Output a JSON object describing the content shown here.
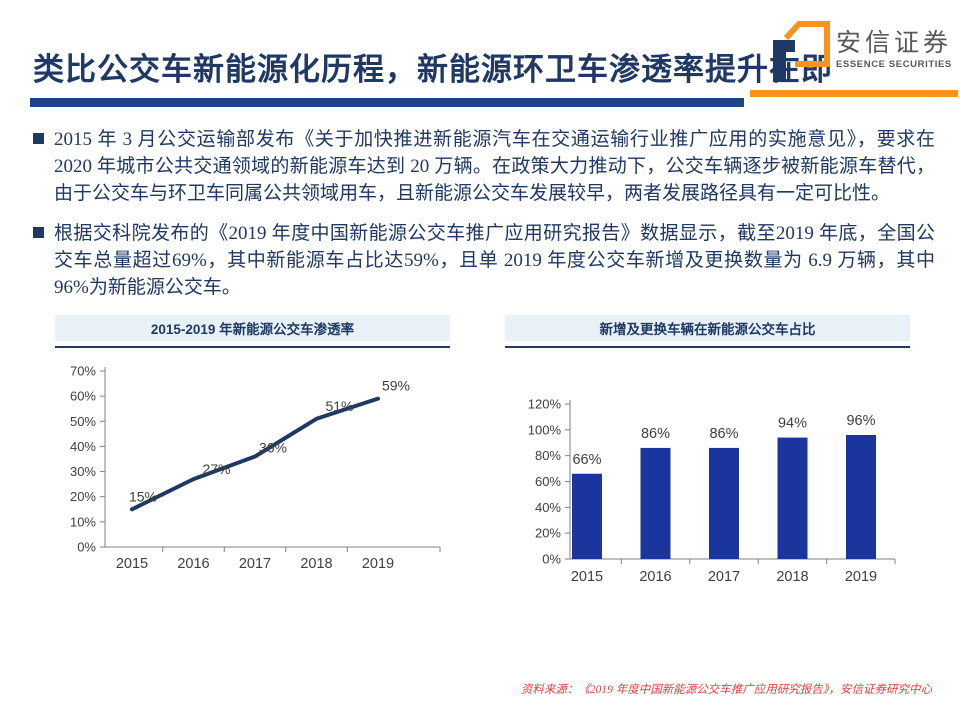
{
  "slide": {
    "title": "类比公交车新能源化历程，新能源环卫车渗透率提升在即",
    "logo": {
      "cn": "安信证券",
      "en": "ESSENCE SECURITIES"
    },
    "bullets": [
      "2015 年 3 月公交运输部发布《关于加快推进新能源汽车在交通运输行业推广应用的实施意见》，要求在 2020 年城市公共交通领域的新能源车达到 20 万辆。在政策大力推动下，公交车辆逐步被新能源车替代，由于公交车与环卫车同属公共领域用车，且新能源公交车发展较早，两者发展路径具有一定可比性。",
      "根据交科院发布的《2019 年度中国新能源公交车推广应用研究报告》数据显示，截至2019 年底，全国公交车总量超过69%，其中新能源车占比达59%，且单 2019 年度公交车新增及更换数量为 6.9 万辆，其中96%为新能源公交车。"
    ],
    "source_note": "资料来源：《2019 年度中国新能源公交车推广应用研究报告》，安信证券研究中心"
  },
  "colors": {
    "navy_text": "#1F3864",
    "divider_blue": "#1C4587",
    "brand_orange": "#F7941D",
    "chart_band_bg": "#E8F1F8",
    "axis_gray": "#808080",
    "label_gray": "#3F3F3F",
    "source_red": "#E04040",
    "logo_gray": "#595959"
  },
  "chart_data": [
    {
      "type": "line",
      "title": "2015-2019 年新能源公交车渗透率",
      "categories": [
        "2015",
        "2016",
        "2017",
        "2018",
        "2019"
      ],
      "values": [
        15,
        27,
        36,
        51,
        59
      ],
      "unit": "%",
      "xlabel": "",
      "ylabel": "",
      "ylim": [
        0,
        70
      ],
      "ytick_step": 10,
      "grid": false,
      "legend": "none",
      "line_color": "#1F3864"
    },
    {
      "type": "bar",
      "title": "新增及更换车辆在新能源公交车占比",
      "categories": [
        "2015",
        "2016",
        "2017",
        "2018",
        "2019"
      ],
      "values": [
        66,
        86,
        86,
        94,
        96
      ],
      "unit": "%",
      "xlabel": "",
      "ylabel": "",
      "ylim": [
        0,
        120
      ],
      "ytick_step": 20,
      "grid": false,
      "legend": "none",
      "bar_color": "#1A359E"
    }
  ]
}
